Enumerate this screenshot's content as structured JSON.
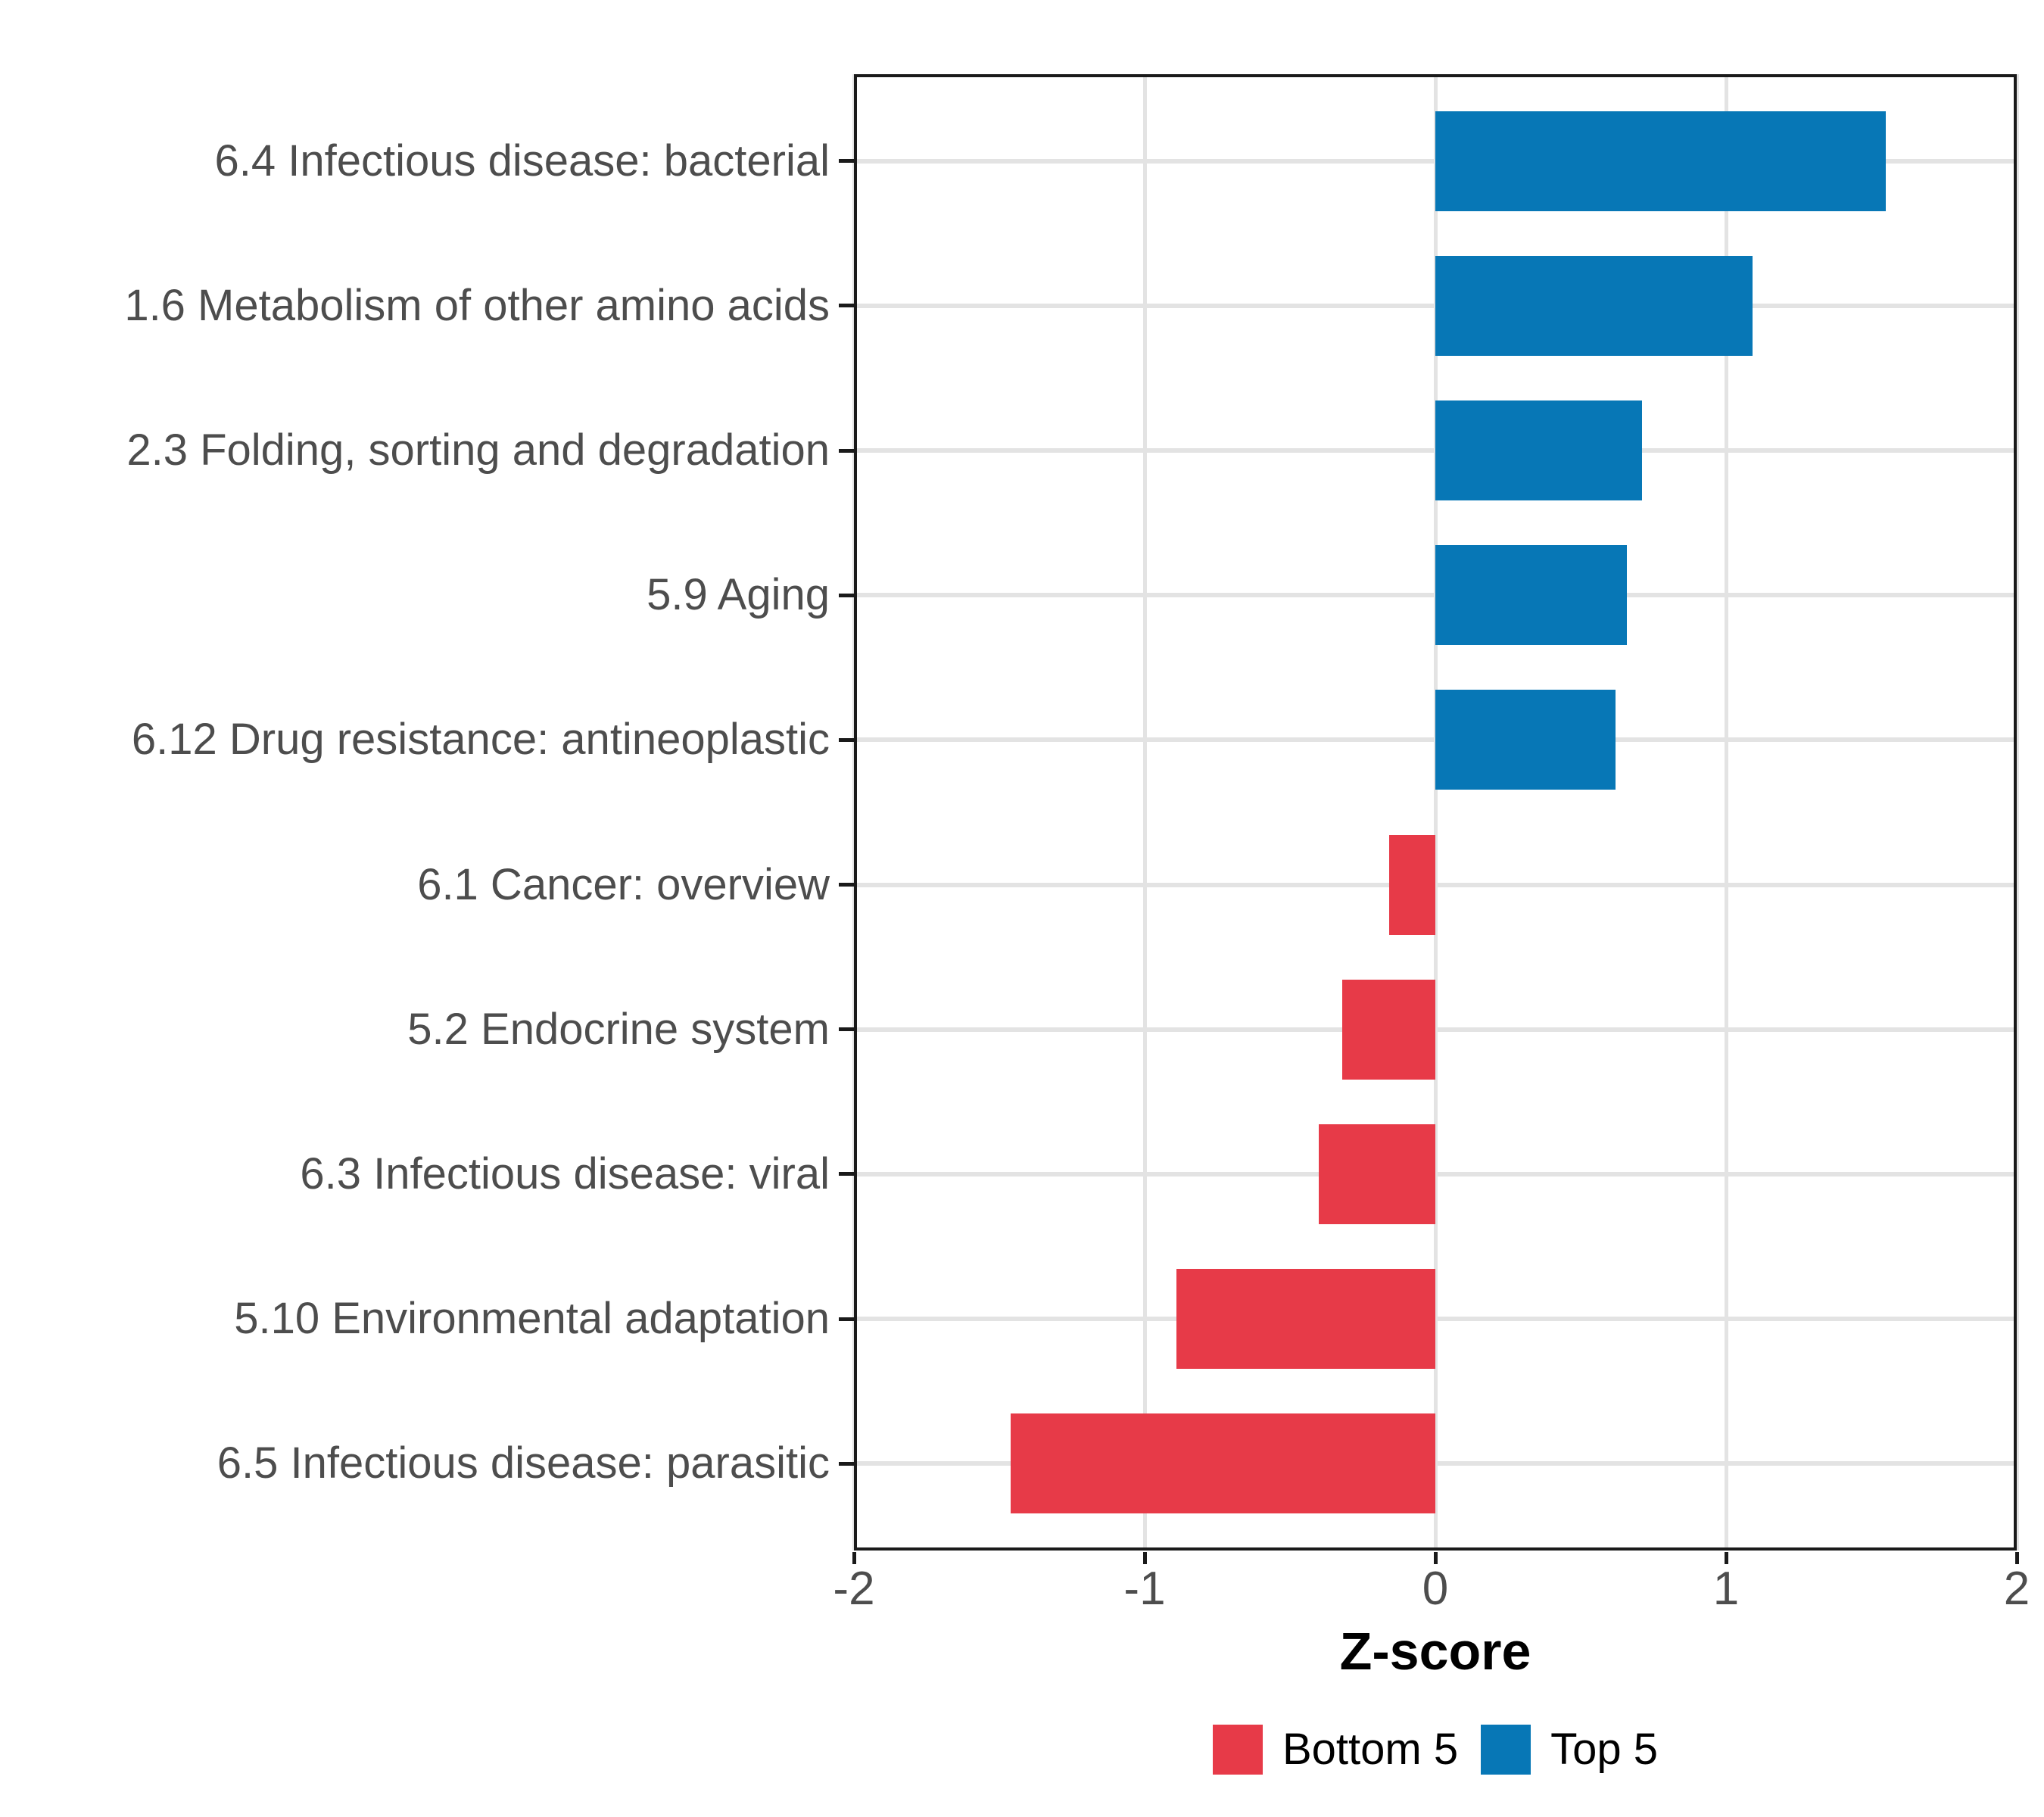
{
  "figure": {
    "background_color": "#FFFFFF",
    "panel_border_color": "#1A1A1A",
    "gridline_color": "#E3E3E3",
    "axis_text_color": "#4D4D4D"
  },
  "legend": {
    "position": "bottom",
    "items": [
      {
        "label": "Bottom 5",
        "color": "#E73A48"
      },
      {
        "label": "Top 5",
        "color": "#0777B6"
      }
    ]
  },
  "chart_data": {
    "type": "bar",
    "orientation": "horizontal",
    "title": "",
    "xlabel": "Z-score",
    "ylabel": "",
    "xlim": [
      -2,
      2
    ],
    "x_ticks": [
      -2,
      -1,
      0,
      1,
      2
    ],
    "x_tick_labels": [
      "-2",
      "-1",
      "0",
      "1",
      "2"
    ],
    "grid": "major vertical gridlines at integer x values and horizontal gridlines at each category; no minor gridlines; white panel with black border",
    "legend_position": "bottom",
    "series": [
      {
        "name": "Top 5",
        "color": "#0777B6"
      },
      {
        "name": "Bottom 5",
        "color": "#E73A48"
      }
    ],
    "bars": [
      {
        "category": "6.4 Infectious disease: bacterial",
        "value": 1.55,
        "group": "Top 5"
      },
      {
        "category": "1.6 Metabolism of other amino acids",
        "value": 1.09,
        "group": "Top 5"
      },
      {
        "category": "2.3 Folding, sorting and degradation",
        "value": 0.71,
        "group": "Top 5"
      },
      {
        "category": "5.9 Aging",
        "value": 0.66,
        "group": "Top 5"
      },
      {
        "category": "6.12 Drug resistance: antineoplastic",
        "value": 0.62,
        "group": "Top 5"
      },
      {
        "category": "6.1 Cancer: overview",
        "value": -0.16,
        "group": "Bottom 5"
      },
      {
        "category": "5.2 Endocrine system",
        "value": -0.32,
        "group": "Bottom 5"
      },
      {
        "category": "6.3 Infectious disease: viral",
        "value": -0.4,
        "group": "Bottom 5"
      },
      {
        "category": "5.10 Environmental adaptation",
        "value": -0.89,
        "group": "Bottom 5"
      },
      {
        "category": "6.5 Infectious disease: parasitic",
        "value": -1.46,
        "group": "Bottom 5"
      }
    ]
  }
}
